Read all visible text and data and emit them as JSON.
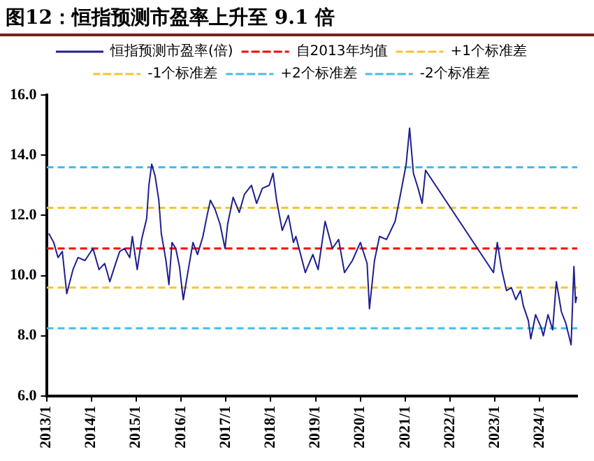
{
  "chart_data": {
    "type": "line",
    "title": "图12：恒指预测市盈率上升至 9.1 倍",
    "x": [
      "2013-01-20",
      "2013-03-01",
      "2013-04-05",
      "2013-05-10",
      "2013-06-15",
      "2013-08-05",
      "2013-09-15",
      "2013-11-10",
      "2014-01-15",
      "2014-03-05",
      "2014-04-20",
      "2014-06-01",
      "2014-07-10",
      "2014-08-20",
      "2014-09-28",
      "2014-11-10",
      "2014-12-01",
      "2015-01-10",
      "2015-02-15",
      "2015-03-28",
      "2015-04-15",
      "2015-05-08",
      "2015-06-05",
      "2015-07-05",
      "2015-07-25",
      "2015-09-01",
      "2015-09-25",
      "2015-10-20",
      "2015-11-20",
      "2015-12-20",
      "2016-01-20",
      "2016-03-01",
      "2016-04-08",
      "2016-05-15",
      "2016-06-28",
      "2016-08-01",
      "2016-08-28",
      "2016-10-05",
      "2016-11-15",
      "2016-12-25",
      "2017-01-15",
      "2017-03-01",
      "2017-04-20",
      "2017-06-01",
      "2017-07-28",
      "2017-09-08",
      "2017-10-25",
      "2017-12-20",
      "2018-01-20",
      "2018-02-18",
      "2018-04-05",
      "2018-05-25",
      "2018-07-05",
      "2018-07-25",
      "2018-10-10",
      "2018-12-10",
      "2019-01-22",
      "2019-03-20",
      "2019-05-18",
      "2019-07-08",
      "2019-08-25",
      "2019-10-28",
      "2020-01-01",
      "2020-02-25",
      "2020-03-15",
      "2020-04-25",
      "2020-06-05",
      "2020-08-01",
      "2020-10-10",
      "2020-11-18",
      "2021-01-08",
      "2021-02-05",
      "2021-03-08",
      "2021-04-15",
      "2021-05-18",
      "2021-06-15",
      "2022-12-20",
      "2023-01-20",
      "2023-02-25",
      "2023-04-05",
      "2023-05-15",
      "2023-06-20",
      "2023-07-28",
      "2023-08-20",
      "2023-09-30",
      "2023-10-20",
      "2023-11-28",
      "2024-01-10",
      "2024-01-30",
      "2024-03-08",
      "2024-04-15",
      "2024-05-15",
      "2024-06-25",
      "2024-08-01",
      "2024-09-12",
      "2024-10-05",
      "2024-10-18",
      "2024-10-28"
    ],
    "series": [
      {
        "name": "恒指预测市盈率(倍)",
        "color": "#1f1f8f",
        "values": [
          11.4,
          11.1,
          10.6,
          10.8,
          9.4,
          10.2,
          10.6,
          10.5,
          10.9,
          10.2,
          10.4,
          9.8,
          10.3,
          10.8,
          10.9,
          10.6,
          11.3,
          10.2,
          11.2,
          11.9,
          13.0,
          13.7,
          13.3,
          12.5,
          11.4,
          10.5,
          9.7,
          11.1,
          10.9,
          10.3,
          9.2,
          10.2,
          11.1,
          10.7,
          11.3,
          12.0,
          12.5,
          12.2,
          11.7,
          10.9,
          11.7,
          12.6,
          12.1,
          12.7,
          13.0,
          12.4,
          12.9,
          13.0,
          13.4,
          12.5,
          11.5,
          12.0,
          11.1,
          11.3,
          10.1,
          10.7,
          10.2,
          11.8,
          10.9,
          11.2,
          10.1,
          10.5,
          11.1,
          10.4,
          8.9,
          10.5,
          11.3,
          11.2,
          11.8,
          12.6,
          13.7,
          14.9,
          13.4,
          12.9,
          12.4,
          13.5,
          10.1,
          11.1,
          10.2,
          9.5,
          9.6,
          9.2,
          9.5,
          9.0,
          8.5,
          7.9,
          8.7,
          8.3,
          8.0,
          8.7,
          8.2,
          9.8,
          8.8,
          8.4,
          7.7,
          10.3,
          9.1,
          9.3
        ]
      }
    ],
    "ref_lines": [
      {
        "axis": "y",
        "value": 10.9,
        "label": "自2013年均值",
        "color": "#ff0000",
        "line_style": "dashed"
      },
      {
        "axis": "y",
        "value": 12.25,
        "label": "+1个标准差",
        "color": "#f5c431",
        "line_style": "dashed"
      },
      {
        "axis": "y",
        "value": 9.6,
        "label": "-1个标准差",
        "color": "#f5c431",
        "line_style": "dashed"
      },
      {
        "axis": "y",
        "value": 13.6,
        "label": "+2个标准差",
        "color": "#44bbee",
        "line_style": "dashed"
      },
      {
        "axis": "y",
        "value": 8.25,
        "label": "-2个标准差",
        "color": "#44bbee",
        "line_style": "dashed"
      }
    ],
    "xlim": [
      "2013-01",
      "2024-11"
    ],
    "xticks": [
      {
        "value": "2013-01",
        "label": "2013/1"
      },
      {
        "value": "2014-01",
        "label": "2014/1"
      },
      {
        "value": "2015-01",
        "label": "2015/1"
      },
      {
        "value": "2016-01",
        "label": "2016/1"
      },
      {
        "value": "2017-01",
        "label": "2017/1"
      },
      {
        "value": "2018-01",
        "label": "2018/1"
      },
      {
        "value": "2019-01",
        "label": "2019/1"
      },
      {
        "value": "2020-01",
        "label": "2020/1"
      },
      {
        "value": "2021-01",
        "label": "2021/1"
      },
      {
        "value": "2022-01",
        "label": "2022/1"
      },
      {
        "value": "2023-01",
        "label": "2023/1"
      },
      {
        "value": "2024-01",
        "label": "2024/1"
      }
    ],
    "ylim": [
      6,
      16
    ],
    "yticks": [
      {
        "value": 6,
        "label": "6.0"
      },
      {
        "value": 8,
        "label": "8.0"
      },
      {
        "value": 10,
        "label": "10.0"
      },
      {
        "value": 12,
        "label": "12.0"
      },
      {
        "value": 14,
        "label": "14.0"
      },
      {
        "value": 16,
        "label": "16.0"
      }
    ],
    "grid": false,
    "legend": "top",
    "marker": "none",
    "line_style": "solid"
  }
}
